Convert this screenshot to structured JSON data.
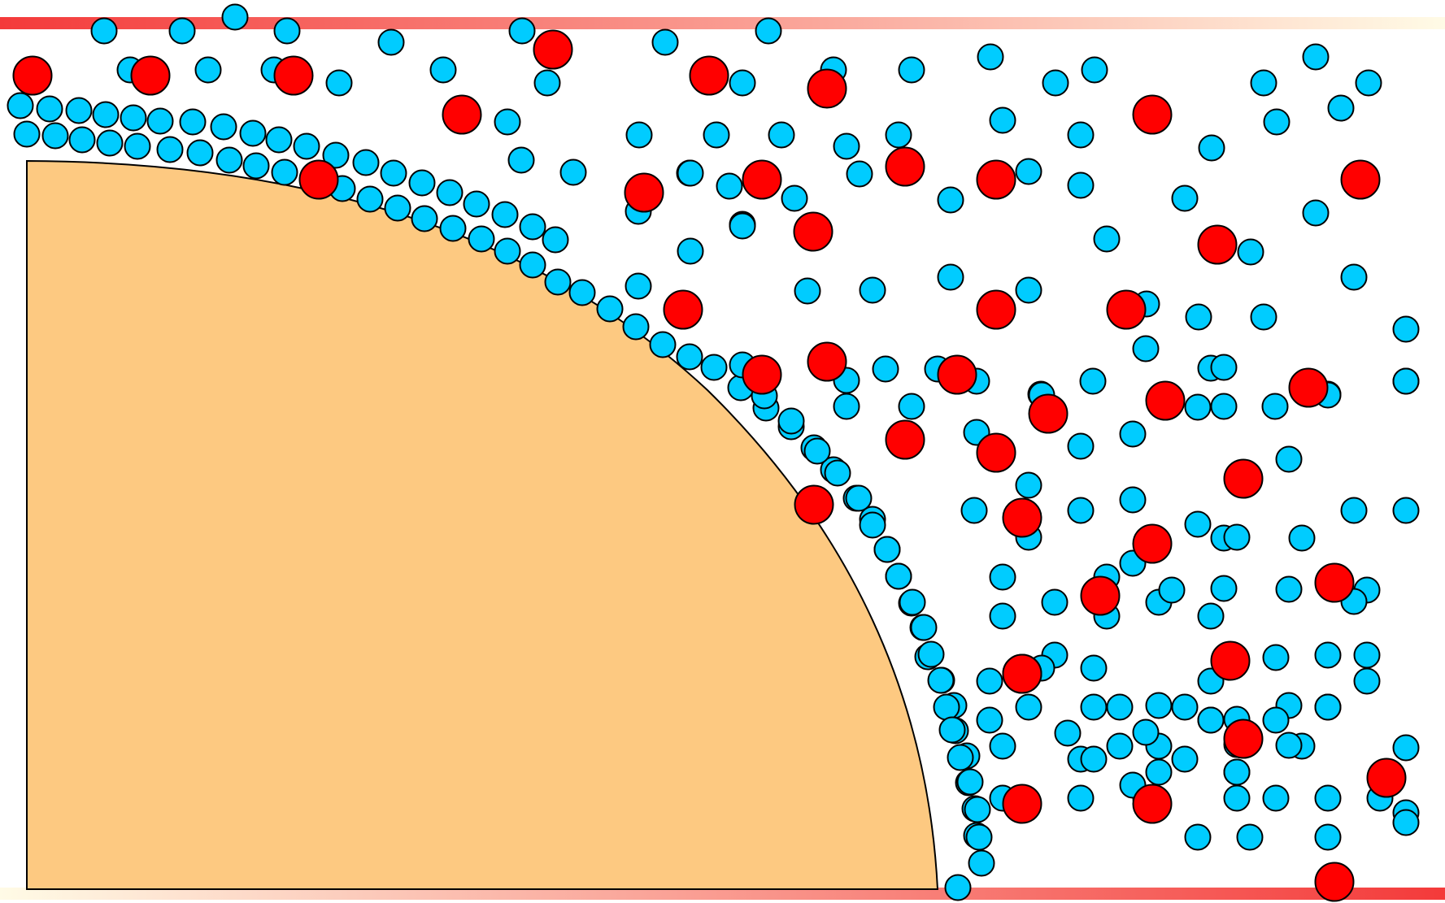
{
  "colors": {
    "background": "#ffffff",
    "surface_fill": "#fdc981",
    "outline": "#000000",
    "small_particle": "#00ccff",
    "large_particle": "#ff0000",
    "bar_red": "#f43a3a",
    "bar_cream": "#fffbe6"
  },
  "particles": {
    "small_count": 263,
    "large_count": 44
  }
}
